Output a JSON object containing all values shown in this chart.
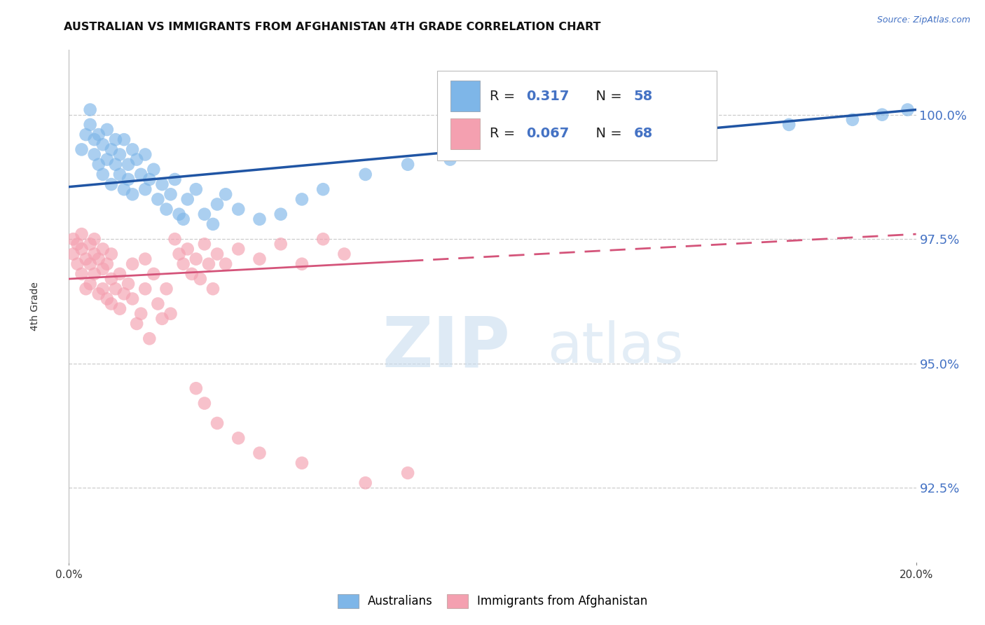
{
  "title": "AUSTRALIAN VS IMMIGRANTS FROM AFGHANISTAN 4TH GRADE CORRELATION CHART",
  "source": "Source: ZipAtlas.com",
  "ylabel": "4th Grade",
  "ytick_values": [
    92.5,
    95.0,
    97.5,
    100.0
  ],
  "xmin": 0.0,
  "xmax": 20.0,
  "ymin": 91.0,
  "ymax": 101.3,
  "legend_R_blue": "0.317",
  "legend_N_blue": "58",
  "legend_R_pink": "0.067",
  "legend_N_pink": "68",
  "blue_color": "#7EB6E8",
  "pink_color": "#F4A0B0",
  "blue_line_color": "#2055A4",
  "pink_line_color": "#D4547A",
  "blue_scatter_x": [
    0.3,
    0.4,
    0.5,
    0.5,
    0.6,
    0.6,
    0.7,
    0.7,
    0.8,
    0.8,
    0.9,
    0.9,
    1.0,
    1.0,
    1.1,
    1.1,
    1.2,
    1.2,
    1.3,
    1.3,
    1.4,
    1.4,
    1.5,
    1.5,
    1.6,
    1.7,
    1.8,
    1.8,
    1.9,
    2.0,
    2.1,
    2.2,
    2.3,
    2.4,
    2.5,
    2.6,
    2.7,
    2.8,
    3.0,
    3.2,
    3.4,
    3.5,
    3.7,
    4.0,
    4.5,
    5.0,
    5.5,
    6.0,
    7.0,
    8.0,
    9.0,
    11.0,
    13.0,
    15.0,
    17.0,
    18.5,
    19.2,
    19.8
  ],
  "blue_scatter_y": [
    99.3,
    99.6,
    100.1,
    99.8,
    99.5,
    99.2,
    99.6,
    99.0,
    99.4,
    98.8,
    99.1,
    99.7,
    99.3,
    98.6,
    99.0,
    99.5,
    98.8,
    99.2,
    99.5,
    98.5,
    99.0,
    98.7,
    99.3,
    98.4,
    99.1,
    98.8,
    99.2,
    98.5,
    98.7,
    98.9,
    98.3,
    98.6,
    98.1,
    98.4,
    98.7,
    98.0,
    97.9,
    98.3,
    98.5,
    98.0,
    97.8,
    98.2,
    98.4,
    98.1,
    97.9,
    98.0,
    98.3,
    98.5,
    98.8,
    99.0,
    99.1,
    99.3,
    99.5,
    99.6,
    99.8,
    99.9,
    100.0,
    100.1
  ],
  "pink_scatter_x": [
    0.1,
    0.1,
    0.2,
    0.2,
    0.3,
    0.3,
    0.3,
    0.4,
    0.4,
    0.5,
    0.5,
    0.5,
    0.6,
    0.6,
    0.6,
    0.7,
    0.7,
    0.8,
    0.8,
    0.8,
    0.9,
    0.9,
    1.0,
    1.0,
    1.0,
    1.1,
    1.2,
    1.2,
    1.3,
    1.4,
    1.5,
    1.5,
    1.6,
    1.7,
    1.8,
    1.8,
    1.9,
    2.0,
    2.1,
    2.2,
    2.3,
    2.4,
    2.5,
    2.6,
    2.7,
    2.8,
    2.9,
    3.0,
    3.1,
    3.2,
    3.3,
    3.4,
    3.5,
    3.7,
    4.0,
    4.5,
    5.0,
    5.5,
    6.0,
    6.5,
    3.0,
    3.2,
    3.5,
    4.0,
    4.5,
    5.5,
    7.0,
    8.0
  ],
  "pink_scatter_y": [
    97.5,
    97.2,
    97.4,
    97.0,
    97.3,
    96.8,
    97.6,
    97.1,
    96.5,
    97.4,
    97.0,
    96.6,
    97.2,
    96.8,
    97.5,
    96.4,
    97.1,
    97.3,
    96.9,
    96.5,
    96.3,
    97.0,
    96.7,
    96.2,
    97.2,
    96.5,
    96.8,
    96.1,
    96.4,
    96.6,
    97.0,
    96.3,
    95.8,
    96.0,
    97.1,
    96.5,
    95.5,
    96.8,
    96.2,
    95.9,
    96.5,
    96.0,
    97.5,
    97.2,
    97.0,
    97.3,
    96.8,
    97.1,
    96.7,
    97.4,
    97.0,
    96.5,
    97.2,
    97.0,
    97.3,
    97.1,
    97.4,
    97.0,
    97.5,
    97.2,
    94.5,
    94.2,
    93.8,
    93.5,
    93.2,
    93.0,
    92.6,
    92.8
  ]
}
